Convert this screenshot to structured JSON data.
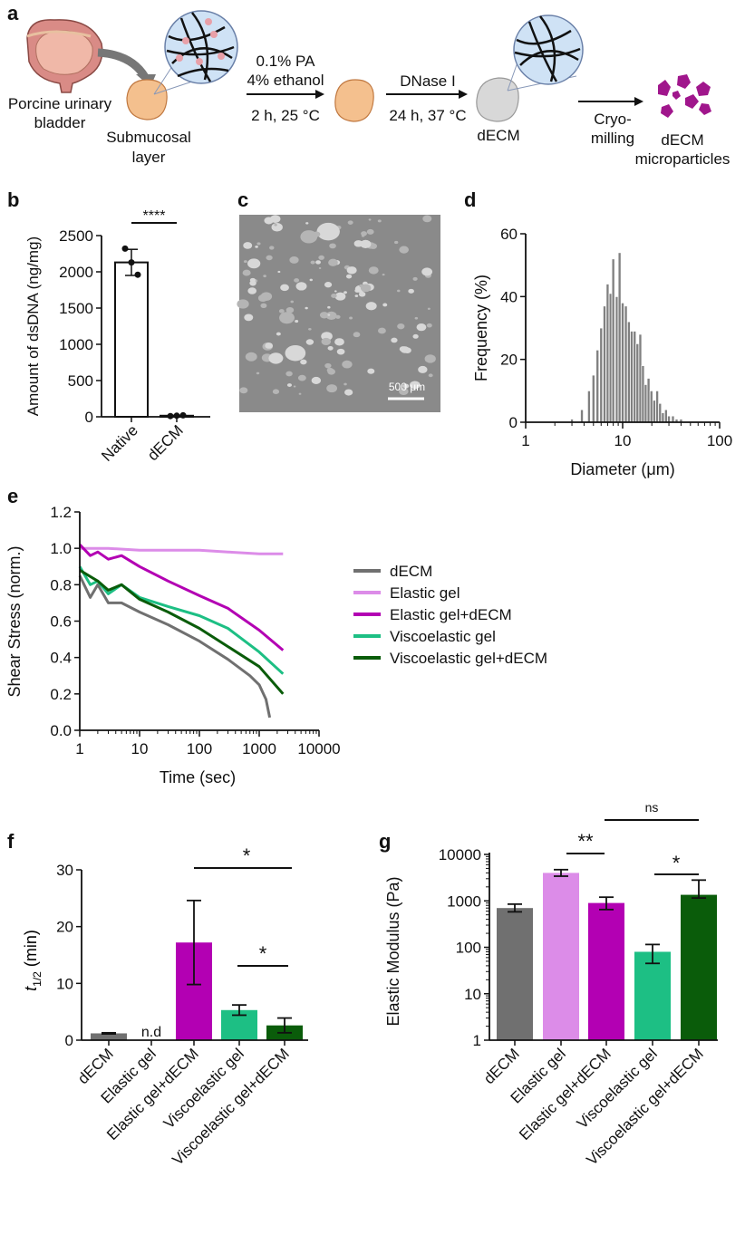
{
  "panels": {
    "a": "a",
    "b": "b",
    "c": "c",
    "d": "d",
    "e": "e",
    "f": "f",
    "g": "g"
  },
  "schematic": {
    "source": "Porcine urinary bladder",
    "source_line1": "Porcine urinary",
    "source_line2": "bladder",
    "layer_line1": "Submucosal",
    "layer_line2": "layer",
    "step1_line1": "0.1% PA",
    "step1_line2": "4% ethanol",
    "step1_line3": "2 h, 25 °C",
    "step2_line1": "DNase I",
    "step2_line2": "24 h, 37 °C",
    "decm_label": "dECM",
    "step3_line1": "Cryo-",
    "step3_line2": "milling",
    "product_line1": "dECM",
    "product_line2": "microparticles"
  },
  "micrograph": {
    "scale_bar": "500 μm"
  },
  "colors": {
    "dECM": "#707070",
    "elastic": "#dc8ce8",
    "elastic_decm": "#b300b3",
    "visco": "#1dbf84",
    "visco_decm": "#0a5c0a",
    "hist": "#808080",
    "particles": "#a0168c"
  },
  "chart_data": [
    {
      "panel": "b",
      "type": "bar",
      "categories": [
        "Native",
        "dECM"
      ],
      "values": [
        2130,
        15
      ],
      "error": [
        180,
        5
      ],
      "points": [
        [
          2320,
          2130,
          1960
        ],
        [
          10,
          15,
          20
        ]
      ],
      "ylabel": "Amount of dsDNA (ng/mg)",
      "ylim": [
        0,
        2500
      ],
      "yticks": [
        "0",
        "500",
        "1000",
        "1500",
        "2000",
        "2500"
      ],
      "significance": "****"
    },
    {
      "panel": "d",
      "type": "bar",
      "xscale": "log",
      "xlabel": "Diameter (μm)",
      "ylabel": "Frequency (%)",
      "xlim": [
        1,
        100
      ],
      "ylim": [
        0,
        60
      ],
      "xticks": [
        "1",
        "10",
        "100"
      ],
      "yticks": [
        "0",
        "20",
        "40",
        "60"
      ],
      "bins": [
        {
          "x": 3.0,
          "y": 1
        },
        {
          "x": 3.8,
          "y": 4
        },
        {
          "x": 4.5,
          "y": 10
        },
        {
          "x": 5.0,
          "y": 15
        },
        {
          "x": 5.5,
          "y": 23
        },
        {
          "x": 6.0,
          "y": 30
        },
        {
          "x": 6.5,
          "y": 37
        },
        {
          "x": 7.0,
          "y": 44
        },
        {
          "x": 7.5,
          "y": 41
        },
        {
          "x": 8.0,
          "y": 52
        },
        {
          "x": 8.7,
          "y": 40
        },
        {
          "x": 9.3,
          "y": 54
        },
        {
          "x": 10.0,
          "y": 38
        },
        {
          "x": 10.8,
          "y": 37
        },
        {
          "x": 11.6,
          "y": 32
        },
        {
          "x": 12.4,
          "y": 29
        },
        {
          "x": 13.3,
          "y": 29
        },
        {
          "x": 14.2,
          "y": 25
        },
        {
          "x": 15.2,
          "y": 28
        },
        {
          "x": 16.2,
          "y": 18
        },
        {
          "x": 17.3,
          "y": 12
        },
        {
          "x": 18.5,
          "y": 14
        },
        {
          "x": 19.8,
          "y": 10
        },
        {
          "x": 21.2,
          "y": 7
        },
        {
          "x": 22.7,
          "y": 10
        },
        {
          "x": 24.3,
          "y": 6
        },
        {
          "x": 26.0,
          "y": 3
        },
        {
          "x": 28.0,
          "y": 4
        },
        {
          "x": 30.0,
          "y": 2
        },
        {
          "x": 33.0,
          "y": 2
        },
        {
          "x": 36.0,
          "y": 1
        },
        {
          "x": 40.0,
          "y": 1
        }
      ]
    },
    {
      "panel": "e",
      "type": "line",
      "xscale": "log",
      "xlabel": "Time (sec)",
      "ylabel": "Shear Stress (norm.)",
      "xlim": [
        1,
        10000
      ],
      "ylim": [
        0,
        1.2
      ],
      "xticks": [
        "1",
        "10",
        "100",
        "1000",
        "10000"
      ],
      "yticks": [
        "0.0",
        "0.2",
        "0.4",
        "0.6",
        "0.8",
        "1.0",
        "1.2"
      ],
      "series": [
        {
          "name": "dECM",
          "x": [
            1,
            1.5,
            2,
            3,
            5,
            10,
            30,
            100,
            300,
            700,
            1000,
            1300,
            1500
          ],
          "y": [
            0.85,
            0.73,
            0.8,
            0.7,
            0.7,
            0.65,
            0.58,
            0.49,
            0.39,
            0.3,
            0.25,
            0.17,
            0.07
          ]
        },
        {
          "name": "Elastic gel",
          "x": [
            1,
            3,
            10,
            30,
            100,
            300,
            1000,
            2500
          ],
          "y": [
            1.0,
            1.0,
            0.99,
            0.99,
            0.99,
            0.98,
            0.97,
            0.97
          ]
        },
        {
          "name": "Elastic gel+dECM",
          "x": [
            1,
            1.5,
            2,
            3,
            5,
            10,
            30,
            100,
            300,
            1000,
            2500
          ],
          "y": [
            1.02,
            0.96,
            0.98,
            0.94,
            0.96,
            0.9,
            0.82,
            0.74,
            0.67,
            0.55,
            0.44
          ]
        },
        {
          "name": "Viscoelastic gel",
          "x": [
            1,
            1.5,
            2,
            3,
            5,
            10,
            30,
            100,
            300,
            1000,
            2500
          ],
          "y": [
            0.9,
            0.8,
            0.82,
            0.75,
            0.8,
            0.73,
            0.68,
            0.63,
            0.56,
            0.43,
            0.31
          ]
        },
        {
          "name": "Viscoelastic gel+dECM",
          "x": [
            1,
            2,
            3,
            5,
            10,
            30,
            100,
            300,
            1000,
            2500
          ],
          "y": [
            0.88,
            0.82,
            0.77,
            0.8,
            0.72,
            0.65,
            0.56,
            0.46,
            0.35,
            0.2
          ]
        }
      ]
    },
    {
      "panel": "f",
      "type": "bar",
      "categories": [
        "dECM",
        "Elastic gel",
        "Elastic gel+dECM",
        "Viscoelastic gel",
        "Viscoelastic gel+dECM"
      ],
      "values": [
        1.2,
        null,
        17.2,
        5.3,
        2.6
      ],
      "error": [
        0.1,
        null,
        7.4,
        0.9,
        1.3
      ],
      "ylabel": "t1/2 (min)",
      "ylabel_main": "t",
      "ylabel_sub": "1/2",
      "ylabel_unit": "(min)",
      "ylim": [
        0,
        30
      ],
      "yticks": [
        "0",
        "10",
        "20",
        "30"
      ],
      "annotations": [
        "n.d",
        "*",
        "*"
      ]
    },
    {
      "panel": "g",
      "type": "bar",
      "yscale": "log",
      "categories": [
        "dECM",
        "Elastic gel",
        "Elastic gel+dECM",
        "Viscoelastic gel",
        "Viscoelastic gel+dECM"
      ],
      "values": [
        700,
        4000,
        900,
        80,
        1350
      ],
      "error_low": [
        580,
        3400,
        650,
        45,
        1150
      ],
      "error_high": [
        850,
        4700,
        1200,
        115,
        2800
      ],
      "ylabel": "Elastic Modulus (Pa)",
      "ylim": [
        1,
        10000
      ],
      "yticks": [
        "1",
        "10",
        "100",
        "1000",
        "10000"
      ],
      "annotations": [
        "**",
        "ns",
        "*"
      ]
    }
  ]
}
